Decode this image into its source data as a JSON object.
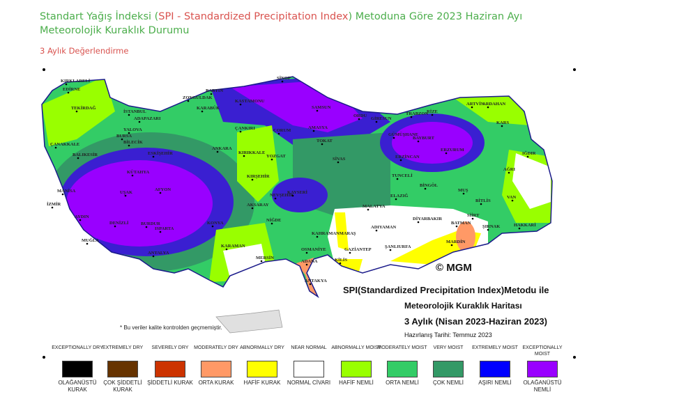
{
  "header": {
    "title_part1": "Standart Yağış İndeksi (",
    "title_red": "SPI - Standardized Precipitation Index",
    "title_part2": ") Metoduna Göre 2023 Haziran Ayı Meteorolojik Kuraklık Durumu",
    "subtitle": "3 Aylık Değerlendirme"
  },
  "map": {
    "copyright": "© MGM",
    "caption_line1": "SPI(Standardized Precipitation Index)Metodu ile",
    "caption_line2": "Meteorolojik Kuraklık Haritası",
    "caption_line3": "3 Aylık (Nisan 2023-Haziran 2023)",
    "prepared": "Hazırlanış Tarihi: Temmuz 2023",
    "note": "* Bu veriler kalite kontrolden geçmemiştir.",
    "cities": [
      "KIRKLARELİ",
      "EDİRNE",
      "TEKİRDAĞ",
      "İSTANBUL",
      "BARTIN",
      "ZONGULDAK",
      "KARABÜK",
      "KASTAMONU",
      "SİNOP",
      "SAMSUN",
      "ORDU",
      "GİRESUN",
      "TRABZON",
      "RİZE",
      "ARTVİN",
      "ARDAHAN",
      "KARS",
      "IĞDIR",
      "AĞRI",
      "ERZURUM",
      "BAYBURT",
      "GÜMÜŞHANE",
      "ERZİNCAN",
      "TOKAT",
      "AMASYA",
      "ÇORUM",
      "ÇANKIRI",
      "ANKARA",
      "KIRIKKALE",
      "YOZGAT",
      "SİVAS",
      "KIRŞEHİR",
      "NEVŞEHİR",
      "KAYSERİ",
      "AKSARAY",
      "NİĞDE",
      "MALATYA",
      "ELAZIĞ",
      "TUNCELİ",
      "BİNGÖL",
      "MUŞ",
      "BİTLİS",
      "VAN",
      "HAKKARİ",
      "ŞIRNAK",
      "SİİRT",
      "BATMAN",
      "MARDİN",
      "DİYARBAKIR",
      "ADIYAMAN",
      "ŞANLIURFA",
      "GAZİANTEP",
      "KİLİS",
      "OSMANİYE",
      "KAHRAMANMARAŞ",
      "ADANA",
      "MERSİN",
      "ANTAKYA",
      "KARAMAN",
      "KONYA",
      "ANTALYA",
      "ISPARTA",
      "BURDUR",
      "DENİZLİ",
      "MUĞLA",
      "AYDIN",
      "İZMİR",
      "MANİSA",
      "UŞAK",
      "AFYON",
      "KÜTAHYA",
      "ESKİŞEHİR",
      "BİLECİK",
      "BURSA",
      "YALOVA",
      "ADAPAZARI",
      "BALIKESİR",
      "ÇANAKKALE"
    ]
  },
  "legend": [
    {
      "en": "EXCEPTIONALLY DRY",
      "tr": "OLAĞANÜSTÜ KURAK",
      "color": "#000000"
    },
    {
      "en": "EXTREMELY DRY",
      "tr": "ÇOK ŞİDDETLİ KURAK",
      "color": "#663300"
    },
    {
      "en": "SEVERELY DRY",
      "tr": "ŞİDDETLİ KURAK",
      "color": "#cc3300"
    },
    {
      "en": "MODERATELY DRY",
      "tr": "ORTA KURAK",
      "color": "#ff9966"
    },
    {
      "en": "ABNORMALLY DRY",
      "tr": "HAFİF KURAK",
      "color": "#ffff00"
    },
    {
      "en": "NEAR NORMAL",
      "tr": "NORMAL CİVARI",
      "color": "#ffffff"
    },
    {
      "en": "ABNORMALLY MOIST",
      "tr": "HAFİF NEMLİ",
      "color": "#99ff00"
    },
    {
      "en": "MODERATELY MOIST",
      "tr": "ORTA NEMLİ",
      "color": "#33cc66"
    },
    {
      "en": "VERY MOIST",
      "tr": "ÇOK NEMLİ",
      "color": "#339966"
    },
    {
      "en": "EXTREMELY MOIST",
      "tr": "AŞIRI NEMLİ",
      "color": "#0000ff"
    },
    {
      "en": "EXCEPTIONALLY MOIST",
      "tr": "OLAĞANÜSTÜ NEMLİ",
      "color": "#9900ff"
    }
  ]
}
